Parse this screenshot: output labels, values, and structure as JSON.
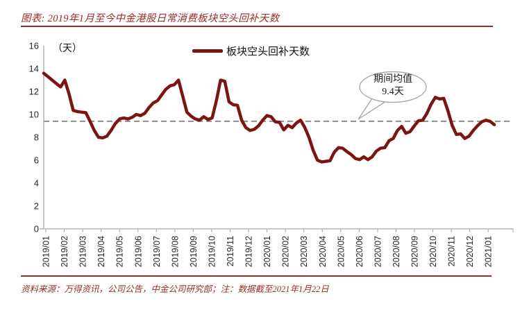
{
  "title": "图表: 2019年1月至今中金港股日常消费板块空头回补天数",
  "source_note": "资料来源：万得资讯，公司公告，中金公司研究部；注：数据截至2021年1月22日",
  "chart_data": {
    "type": "line",
    "title": "2019年1月至今中金港股日常消费板块空头回补天数",
    "unit_label": "（天）",
    "grid": false,
    "legend_position": "top-center",
    "ylim": [
      0,
      16
    ],
    "yticks": [
      0,
      2,
      4,
      6,
      8,
      10,
      12,
      14,
      16
    ],
    "x_frequency": "weekly",
    "x_tick_labels": [
      "2019/01",
      "2019/02",
      "2019/03",
      "2019/04",
      "2019/05",
      "2019/06",
      "2019/07",
      "2019/08",
      "2019/09",
      "2019/10",
      "2019/11",
      "2019/12",
      "2020/01",
      "2020/02",
      "2020/03",
      "2020/04",
      "2020/05",
      "2020/06",
      "2020/07",
      "2020/08",
      "2020/09",
      "2020/10",
      "2020/11",
      "2020/12",
      "2021/01"
    ],
    "series": [
      {
        "name": "板块空头回补天数",
        "values": [
          13.6,
          13.3,
          13.0,
          12.7,
          12.4,
          13.0,
          11.8,
          10.35,
          10.25,
          10.2,
          10.15,
          9.4,
          8.6,
          8.0,
          7.95,
          8.1,
          8.6,
          9.2,
          9.6,
          9.7,
          9.6,
          9.75,
          10.0,
          9.9,
          10.1,
          10.6,
          11.0,
          11.2,
          11.7,
          12.2,
          12.5,
          12.6,
          13.0,
          11.6,
          10.2,
          9.85,
          9.6,
          9.5,
          9.8,
          9.55,
          9.7,
          11.2,
          13.0,
          12.9,
          11.1,
          10.85,
          10.8,
          9.5,
          8.85,
          8.6,
          8.7,
          9.0,
          9.5,
          9.9,
          9.8,
          9.35,
          9.3,
          8.65,
          9.05,
          8.85,
          9.25,
          9.5,
          8.85,
          8.0,
          6.85,
          6.0,
          5.85,
          5.9,
          5.95,
          6.7,
          7.1,
          7.05,
          6.75,
          6.5,
          6.15,
          6.05,
          6.3,
          6.05,
          6.3,
          6.8,
          7.05,
          7.1,
          7.7,
          7.9,
          8.6,
          8.95,
          8.35,
          8.5,
          9.0,
          9.45,
          9.5,
          10.1,
          10.9,
          11.5,
          11.35,
          11.4,
          10.3,
          9.05,
          8.25,
          8.3,
          7.9,
          8.1,
          8.6,
          9.0,
          9.35,
          9.5,
          9.4,
          9.1
        ]
      }
    ],
    "mean_annotation": {
      "line1": "期间均值",
      "line2": "9.4天",
      "value": 9.4
    },
    "colors": {
      "line": "#7b1512",
      "mean_dash": "#8c8c8c",
      "axis": "#a6a6a6",
      "title_text": "#9b2d26",
      "rule": "#8a322b",
      "callout_border": "#9e9e9e"
    }
  }
}
